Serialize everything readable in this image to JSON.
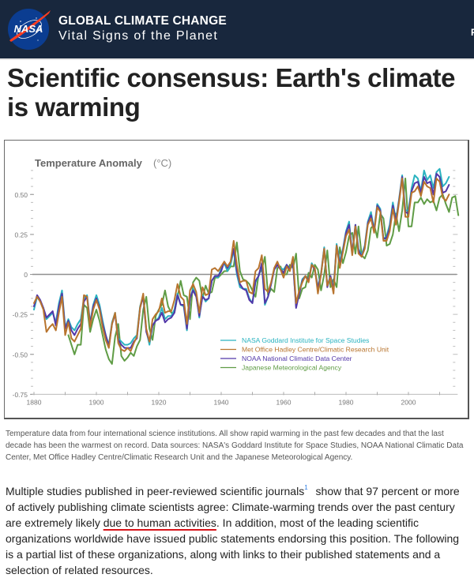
{
  "header": {
    "logo_label": "NASA",
    "title": "GLOBAL CLIMATE CHANGE",
    "subtitle": "Vital Signs of the Planet",
    "nav_cutoff": "F",
    "colors": {
      "background": "#18273d",
      "logo_blue": "#0b3d91",
      "logo_red": "#fc3d21"
    }
  },
  "page": {
    "title": "Scientific consensus: Earth's climate is warming"
  },
  "caption": "Temperature data from four international science institutions. All show rapid warming in the past few decades and that the last decade has been the warmest on record. Data sources: NASA's Goddard Institute for Space Studies, NOAA National Climatic Data Center, Met Office Hadley Centre/Climatic Research Unit and the Japanese Meteorological Agency.",
  "body": {
    "part1": "Multiple studies published in peer-reviewed scientific journals",
    "footnote": "1",
    "part2": " show that 97 percent or more of actively publishing climate scientists agree: Climate-warming trends over the past century are extremely likely ",
    "highlight": "due to human activities",
    "part3": ". In addition, most of the leading scientific organizations worldwide have issued public statements endorsing this position. The following is a partial list of these organizations, along with links to their published statements and a selection of related resources.",
    "highlight_color": "#d8141a"
  },
  "chart_data": {
    "type": "line",
    "title": "Temperature Anomaly",
    "title_unit": "(°C)",
    "xlabel": "",
    "ylabel": "",
    "xlim": [
      1880,
      2013
    ],
    "ylim": [
      -0.75,
      0.65
    ],
    "xticks": [
      1880,
      1900,
      1920,
      1940,
      1960,
      1980,
      2000
    ],
    "yticks": [
      0.5,
      0.25,
      0,
      -0.25,
      -0.5,
      -0.75
    ],
    "ytick_labels": [
      "0.50",
      "0.25",
      "0",
      "-0.25",
      "-0.50",
      "-0.75"
    ],
    "zero_line": true,
    "grid": false,
    "legend_position": "lower-right",
    "series": [
      {
        "name": "NASA Goddard Institute for Space Studies",
        "color": "#2ab3c0",
        "start_year": 1880,
        "values": [
          -0.22,
          -0.14,
          -0.17,
          -0.21,
          -0.28,
          -0.26,
          -0.24,
          -0.3,
          -0.18,
          -0.1,
          -0.33,
          -0.28,
          -0.33,
          -0.35,
          -0.31,
          -0.28,
          -0.15,
          -0.13,
          -0.3,
          -0.19,
          -0.13,
          -0.19,
          -0.29,
          -0.38,
          -0.44,
          -0.3,
          -0.24,
          -0.4,
          -0.42,
          -0.44,
          -0.44,
          -0.43,
          -0.4,
          -0.38,
          -0.2,
          -0.13,
          -0.35,
          -0.44,
          -0.32,
          -0.29,
          -0.27,
          -0.21,
          -0.28,
          -0.26,
          -0.26,
          -0.22,
          -0.12,
          -0.19,
          -0.2,
          -0.35,
          -0.15,
          -0.09,
          -0.13,
          -0.27,
          -0.13,
          -0.17,
          -0.15,
          -0.04,
          -0.01,
          -0.02,
          0.04,
          0.07,
          0.02,
          0.06,
          0.15,
          0.0,
          -0.08,
          -0.09,
          -0.09,
          -0.15,
          -0.18,
          -0.05,
          -0.01,
          0.06,
          -0.19,
          -0.14,
          -0.06,
          0.03,
          0.06,
          0.04,
          0.03,
          0.06,
          0.03,
          0.07,
          -0.2,
          -0.11,
          -0.03,
          -0.01,
          -0.04,
          0.07,
          0.03,
          -0.08,
          0.01,
          0.17,
          -0.07,
          -0.01,
          -0.09,
          0.19,
          0.08,
          0.16,
          0.27,
          0.33,
          0.13,
          0.31,
          0.16,
          0.12,
          0.18,
          0.33,
          0.39,
          0.28,
          0.44,
          0.41,
          0.22,
          0.24,
          0.31,
          0.45,
          0.34,
          0.47,
          0.62,
          0.4,
          0.4,
          0.54,
          0.62,
          0.6,
          0.52,
          0.65,
          0.59,
          0.62,
          0.54,
          0.64,
          0.66,
          0.55,
          0.57,
          0.61
        ],
        "note": "annual values 1880-2013 estimated from plot"
      },
      {
        "name": "Met Office Hadley Centre/Climatic Research Unit",
        "color": "#b8742e",
        "start_year": 1880,
        "values": [
          -0.18,
          -0.14,
          -0.17,
          -0.22,
          -0.36,
          -0.33,
          -0.31,
          -0.35,
          -0.24,
          -0.14,
          -0.38,
          -0.3,
          -0.4,
          -0.42,
          -0.38,
          -0.34,
          -0.13,
          -0.14,
          -0.33,
          -0.22,
          -0.16,
          -0.22,
          -0.33,
          -0.41,
          -0.46,
          -0.31,
          -0.24,
          -0.43,
          -0.47,
          -0.48,
          -0.46,
          -0.48,
          -0.43,
          -0.39,
          -0.21,
          -0.12,
          -0.34,
          -0.42,
          -0.28,
          -0.25,
          -0.23,
          -0.15,
          -0.24,
          -0.23,
          -0.23,
          -0.16,
          -0.06,
          -0.14,
          -0.16,
          -0.31,
          -0.1,
          -0.06,
          -0.11,
          -0.24,
          -0.08,
          -0.13,
          -0.12,
          0.03,
          0.04,
          0.02,
          0.05,
          0.08,
          0.05,
          0.08,
          0.21,
          0.06,
          -0.05,
          -0.04,
          -0.04,
          -0.11,
          -0.12,
          0.02,
          0.04,
          0.12,
          -0.09,
          -0.11,
          -0.05,
          0.04,
          0.08,
          0.03,
          -0.02,
          0.05,
          0.02,
          0.11,
          -0.18,
          -0.1,
          -0.05,
          -0.01,
          -0.05,
          0.06,
          0.04,
          -0.12,
          0.0,
          0.16,
          -0.07,
          -0.02,
          -0.12,
          0.18,
          0.04,
          0.14,
          0.24,
          0.28,
          0.12,
          0.3,
          0.13,
          0.11,
          0.16,
          0.31,
          0.35,
          0.26,
          0.42,
          0.39,
          0.21,
          0.21,
          0.27,
          0.41,
          0.31,
          0.45,
          0.6,
          0.36,
          0.36,
          0.51,
          0.52,
          0.55,
          0.49,
          0.58,
          0.55,
          0.54,
          0.45,
          0.6,
          0.58,
          0.48,
          0.46,
          0.5
        ]
      },
      {
        "name": "NOAA National Climatic Data Center",
        "color": "#5237a9",
        "start_year": 1880,
        "values": [
          -0.2,
          -0.13,
          -0.16,
          -0.21,
          -0.27,
          -0.25,
          -0.23,
          -0.32,
          -0.2,
          -0.12,
          -0.34,
          -0.29,
          -0.35,
          -0.38,
          -0.34,
          -0.31,
          -0.17,
          -0.14,
          -0.31,
          -0.2,
          -0.15,
          -0.21,
          -0.31,
          -0.38,
          -0.45,
          -0.31,
          -0.25,
          -0.41,
          -0.44,
          -0.46,
          -0.46,
          -0.46,
          -0.42,
          -0.4,
          -0.21,
          -0.14,
          -0.36,
          -0.42,
          -0.32,
          -0.29,
          -0.28,
          -0.24,
          -0.3,
          -0.28,
          -0.27,
          -0.24,
          -0.13,
          -0.19,
          -0.19,
          -0.34,
          -0.15,
          -0.1,
          -0.14,
          -0.26,
          -0.14,
          -0.16,
          -0.15,
          -0.04,
          -0.01,
          -0.01,
          0.02,
          0.08,
          0.04,
          0.08,
          0.16,
          0.02,
          -0.06,
          -0.09,
          -0.1,
          -0.16,
          -0.18,
          -0.04,
          -0.01,
          0.07,
          -0.18,
          -0.14,
          -0.06,
          0.03,
          0.06,
          0.03,
          0.01,
          0.06,
          0.03,
          0.07,
          -0.21,
          -0.12,
          -0.04,
          -0.01,
          -0.04,
          0.06,
          0.03,
          -0.09,
          0.0,
          0.16,
          -0.08,
          -0.01,
          -0.1,
          0.18,
          0.06,
          0.15,
          0.26,
          0.31,
          0.13,
          0.31,
          0.15,
          0.11,
          0.17,
          0.32,
          0.37,
          0.27,
          0.43,
          0.4,
          0.22,
          0.23,
          0.29,
          0.43,
          0.33,
          0.46,
          0.61,
          0.39,
          0.38,
          0.52,
          0.57,
          0.58,
          0.51,
          0.61,
          0.57,
          0.58,
          0.5,
          0.63,
          0.61,
          0.51,
          0.52,
          0.56
        ]
      },
      {
        "name": "Japanese Meteorological Agency",
        "color": "#5f9c45",
        "start_year": 1891,
        "values": [
          -0.38,
          -0.44,
          -0.5,
          -0.44,
          -0.44,
          -0.19,
          -0.21,
          -0.36,
          -0.28,
          -0.22,
          -0.29,
          -0.38,
          -0.47,
          -0.53,
          -0.56,
          -0.39,
          -0.31,
          -0.51,
          -0.54,
          -0.52,
          -0.49,
          -0.51,
          -0.45,
          -0.41,
          -0.22,
          -0.14,
          -0.34,
          -0.41,
          -0.26,
          -0.22,
          -0.19,
          -0.1,
          -0.2,
          -0.24,
          -0.24,
          -0.14,
          -0.04,
          -0.13,
          -0.14,
          -0.28,
          -0.05,
          -0.02,
          -0.04,
          -0.15,
          -0.07,
          -0.12,
          -0.11,
          -0.02,
          -0.02,
          0.0,
          0.02,
          0.02,
          0.05,
          0.05,
          0.2,
          0.02,
          -0.03,
          -0.04,
          -0.06,
          -0.1,
          -0.14,
          0.0,
          0.03,
          0.11,
          -0.13,
          -0.09,
          -0.11,
          0.04,
          0.05,
          0.0,
          0.0,
          0.06,
          0.04,
          0.13,
          -0.15,
          -0.09,
          -0.08,
          0.01,
          -0.02,
          0.06,
          0.03,
          -0.1,
          0.0,
          0.15,
          -0.08,
          -0.03,
          -0.08,
          0.17,
          0.07,
          0.14,
          0.24,
          0.26,
          0.13,
          0.3,
          0.12,
          0.1,
          0.15,
          0.29,
          0.31,
          0.23,
          0.38,
          0.35,
          0.18,
          0.19,
          0.25,
          0.38,
          0.27,
          0.4,
          0.6,
          0.3,
          0.3,
          0.45,
          0.45,
          0.48,
          0.44,
          0.47,
          0.45,
          0.46,
          0.4,
          0.48,
          0.5,
          0.44,
          0.39,
          0.48,
          0.49,
          0.37
        ]
      }
    ]
  }
}
